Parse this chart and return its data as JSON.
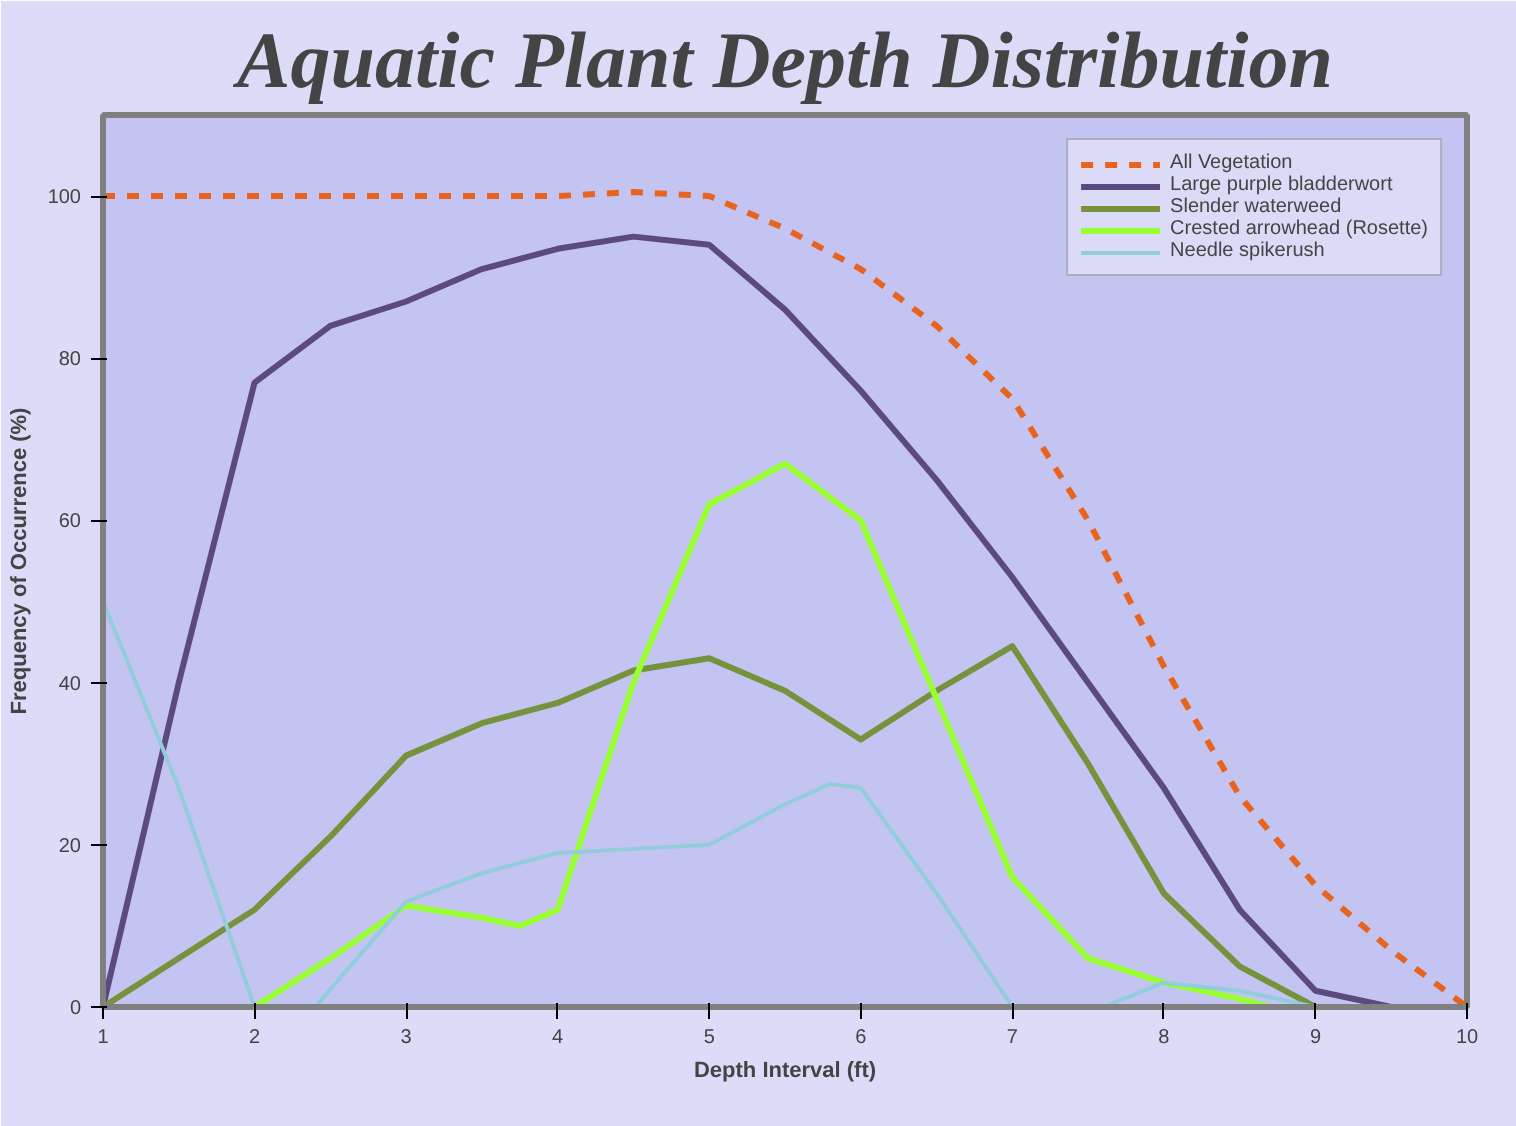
{
  "chart_data": {
    "type": "line",
    "title": "Aquatic Plant Depth Distribution",
    "xlabel": "Depth Interval (ft)",
    "ylabel": "Frequency of Occurrence (%)",
    "xlim": [
      1,
      10
    ],
    "ylim": [
      0,
      110
    ],
    "xticks": [
      1,
      2,
      3,
      4,
      5,
      6,
      7,
      8,
      9,
      10
    ],
    "yticks": [
      0,
      20,
      40,
      60,
      80,
      100
    ],
    "grid": false,
    "legend": "top right",
    "series": [
      {
        "name": "All Vegetation",
        "color": "#e8641e",
        "line_style": "dashed",
        "x": [
          1,
          2,
          3,
          4,
          4.5,
          5,
          5.5,
          6,
          6.5,
          7,
          7.5,
          8,
          8.5,
          9,
          9.5,
          10
        ],
        "values": [
          100,
          100,
          100,
          100,
          100.5,
          100,
          96,
          91,
          84,
          75,
          60,
          42,
          26,
          15,
          7,
          0
        ]
      },
      {
        "name": "Large purple bladderwort",
        "color": "#5c4a7e",
        "x": [
          1,
          1.5,
          2,
          2.5,
          3,
          3.5,
          4,
          4.5,
          5,
          5.5,
          6,
          6.5,
          7,
          7.5,
          8,
          8.5,
          9,
          9.5,
          10
        ],
        "values": [
          0,
          40,
          77,
          84,
          87,
          91,
          93.5,
          95,
          94,
          86,
          76,
          65,
          53,
          40,
          27,
          12,
          2,
          0,
          0
        ]
      },
      {
        "name": "Slender waterweed",
        "color": "#76923c",
        "x": [
          1,
          1.5,
          2,
          2.5,
          3,
          3.5,
          4,
          4.5,
          5,
          5.5,
          6,
          6.5,
          7,
          7.5,
          8,
          8.5,
          9
        ],
        "values": [
          0,
          6,
          12,
          21,
          31,
          35,
          37.5,
          41.5,
          43,
          39,
          33,
          39,
          44.5,
          30,
          14,
          5,
          0
        ]
      },
      {
        "name": "Crested arrowhead (Rosette)",
        "color": "#99ff33",
        "x": [
          2,
          2.5,
          3,
          3.5,
          3.75,
          4,
          4.5,
          5,
          5.5,
          6,
          6.5,
          7,
          7.5,
          8,
          8.5,
          8.7
        ],
        "values": [
          0,
          6,
          12.5,
          11,
          10,
          12,
          40,
          62,
          67,
          60,
          38,
          16,
          6,
          3,
          1,
          0
        ]
      },
      {
        "name": "Needle spikerush",
        "color": "#92cddc",
        "x": [
          1,
          1.5,
          2,
          2.2,
          2.4,
          3,
          3.5,
          4,
          4.5,
          5,
          5.5,
          5.8,
          6,
          6.5,
          7,
          7.3,
          7.6,
          8,
          8.5,
          9
        ],
        "values": [
          50,
          27,
          0,
          null,
          0,
          13,
          16.5,
          19,
          19.5,
          20,
          25,
          27.5,
          27,
          14,
          0,
          null,
          0,
          3,
          2,
          0
        ]
      }
    ]
  }
}
